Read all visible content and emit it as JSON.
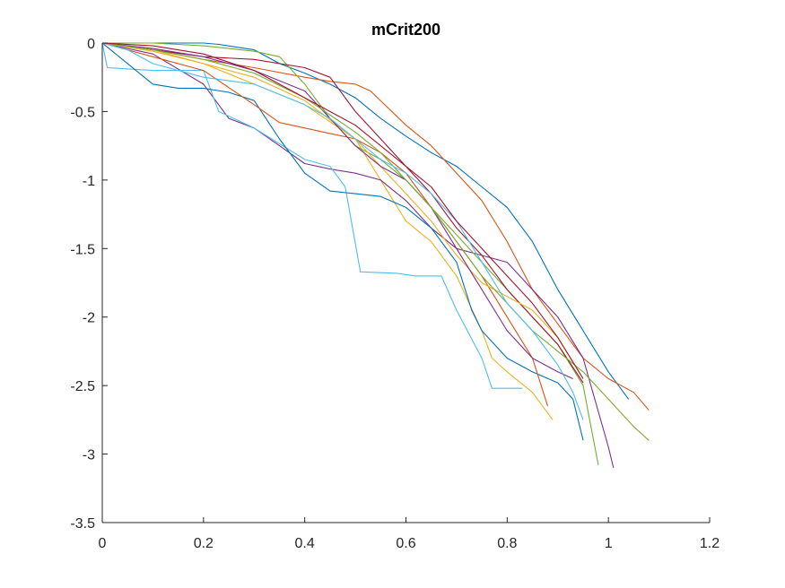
{
  "chart_data": {
    "type": "line",
    "title": "mCrit200",
    "xlabel": "",
    "ylabel": "",
    "xlim": [
      0,
      1.2
    ],
    "ylim": [
      -3.5,
      0
    ],
    "xticks": [
      0,
      0.2,
      0.4,
      0.6,
      0.8,
      1,
      1.2
    ],
    "xtick_labels": [
      "0",
      "0.2",
      "0.4",
      "0.6",
      "0.8",
      "1",
      "1.2"
    ],
    "yticks": [
      0,
      -0.5,
      -1,
      -1.5,
      -2,
      -2.5,
      -3,
      -3.5
    ],
    "ytick_labels": [
      "0",
      "-0.5",
      "-1",
      "-1.5",
      "-2",
      "-2.5",
      "-3",
      "-3.5"
    ],
    "grid": false,
    "legend": "none",
    "series": [
      {
        "color": "#0072BD",
        "x": [
          0,
          0.1,
          0.2,
          0.23,
          0.3,
          0.35,
          0.4,
          0.45,
          0.5,
          0.55,
          0.6,
          0.65,
          0.7,
          0.75,
          0.8,
          0.85,
          0.9,
          0.95,
          1.0,
          1.04
        ],
        "y": [
          0,
          0,
          0,
          -0.01,
          -0.05,
          -0.15,
          -0.22,
          -0.3,
          -0.4,
          -0.55,
          -0.68,
          -0.8,
          -0.9,
          -1.05,
          -1.2,
          -1.45,
          -1.8,
          -2.1,
          -2.4,
          -2.6
        ]
      },
      {
        "color": "#D95319",
        "x": [
          0,
          0.1,
          0.2,
          0.3,
          0.4,
          0.45,
          0.5,
          0.53,
          0.6,
          0.65,
          0.7,
          0.75,
          0.8,
          0.85,
          0.9,
          0.95,
          1.0,
          1.05,
          1.08
        ],
        "y": [
          0,
          -0.05,
          -0.12,
          -0.18,
          -0.25,
          -0.28,
          -0.3,
          -0.35,
          -0.6,
          -0.75,
          -0.95,
          -1.15,
          -1.45,
          -1.8,
          -2.05,
          -2.3,
          -2.45,
          -2.55,
          -2.68
        ]
      },
      {
        "color": "#EDB120",
        "x": [
          0,
          0.1,
          0.2,
          0.3,
          0.4,
          0.5,
          0.55,
          0.6,
          0.65,
          0.7,
          0.75,
          0.77,
          0.8,
          0.85,
          0.89
        ],
        "y": [
          0,
          -0.05,
          -0.15,
          -0.25,
          -0.42,
          -0.7,
          -1.0,
          -1.3,
          -1.45,
          -1.7,
          -2.1,
          -2.3,
          -2.4,
          -2.55,
          -2.75
        ]
      },
      {
        "color": "#7E2F8E",
        "x": [
          0,
          0.1,
          0.2,
          0.25,
          0.3,
          0.35,
          0.4,
          0.45,
          0.5,
          0.55,
          0.6,
          0.65,
          0.7,
          0.75,
          0.8,
          0.85,
          0.9,
          0.95,
          1.0,
          1.01
        ],
        "y": [
          0,
          -0.08,
          -0.3,
          -0.55,
          -0.62,
          -0.75,
          -0.88,
          -0.92,
          -0.95,
          -1.0,
          -1.15,
          -1.35,
          -1.5,
          -1.55,
          -1.6,
          -1.8,
          -2.0,
          -2.3,
          -2.95,
          -3.1
        ]
      },
      {
        "color": "#77AC30",
        "x": [
          0,
          0.1,
          0.2,
          0.25,
          0.3,
          0.35,
          0.4,
          0.45,
          0.5,
          0.55,
          0.6,
          0.65,
          0.7,
          0.75,
          0.8,
          0.85,
          0.9,
          0.95,
          0.98
        ],
        "y": [
          0,
          0,
          -0.02,
          -0.04,
          -0.06,
          -0.1,
          -0.3,
          -0.55,
          -0.75,
          -0.85,
          -1.0,
          -1.2,
          -1.4,
          -1.6,
          -1.8,
          -2.0,
          -2.2,
          -2.5,
          -3.08
        ]
      },
      {
        "color": "#4DBEEE",
        "x": [
          0,
          0.01,
          0.1,
          0.2,
          0.23,
          0.3,
          0.4,
          0.45,
          0.48,
          0.51,
          0.58,
          0.62,
          0.67,
          0.7,
          0.75,
          0.77,
          0.8,
          0.83
        ],
        "y": [
          0,
          -0.18,
          -0.2,
          -0.2,
          -0.5,
          -0.62,
          -0.85,
          -0.9,
          -1.05,
          -1.67,
          -1.68,
          -1.7,
          -1.7,
          -1.95,
          -2.3,
          -2.52,
          -2.52,
          -2.52
        ]
      },
      {
        "color": "#A2142F",
        "x": [
          0,
          0.1,
          0.2,
          0.3,
          0.4,
          0.45,
          0.5,
          0.55,
          0.6,
          0.65,
          0.7,
          0.75,
          0.8,
          0.85,
          0.9,
          0.95
        ],
        "y": [
          0,
          -0.05,
          -0.1,
          -0.12,
          -0.18,
          -0.25,
          -0.5,
          -0.7,
          -0.9,
          -1.1,
          -1.35,
          -1.55,
          -1.8,
          -2.0,
          -2.2,
          -2.48
        ]
      },
      {
        "color": "#0072BD",
        "x": [
          0,
          0.1,
          0.15,
          0.2,
          0.25,
          0.3,
          0.35,
          0.4,
          0.45,
          0.5,
          0.55,
          0.6,
          0.65,
          0.7,
          0.73,
          0.75,
          0.8,
          0.85,
          0.9,
          0.93,
          0.95
        ],
        "y": [
          0,
          -0.3,
          -0.33,
          -0.33,
          -0.36,
          -0.42,
          -0.7,
          -0.95,
          -1.08,
          -1.1,
          -1.12,
          -1.2,
          -1.35,
          -1.6,
          -1.95,
          -2.1,
          -2.3,
          -2.4,
          -2.48,
          -2.6,
          -2.9
        ]
      },
      {
        "color": "#D95319",
        "x": [
          0,
          0.1,
          0.2,
          0.3,
          0.35,
          0.4,
          0.45,
          0.5,
          0.55,
          0.6,
          0.65,
          0.7,
          0.75,
          0.8,
          0.85,
          0.88
        ],
        "y": [
          0,
          -0.1,
          -0.2,
          -0.45,
          -0.58,
          -0.62,
          -0.66,
          -0.7,
          -0.8,
          -0.95,
          -1.2,
          -1.45,
          -1.7,
          -2.0,
          -2.3,
          -2.65
        ]
      },
      {
        "color": "#EDB120",
        "x": [
          0,
          0.1,
          0.2,
          0.3,
          0.4,
          0.5,
          0.55,
          0.6,
          0.65,
          0.7,
          0.75,
          0.8,
          0.85,
          0.9,
          0.95
        ],
        "y": [
          0,
          -0.06,
          -0.15,
          -0.3,
          -0.45,
          -0.7,
          -0.9,
          -1.1,
          -1.3,
          -1.55,
          -1.75,
          -1.85,
          -1.95,
          -2.15,
          -2.45
        ]
      },
      {
        "color": "#7E2F8E",
        "x": [
          0,
          0.1,
          0.2,
          0.3,
          0.4,
          0.45,
          0.5,
          0.55,
          0.6,
          0.65,
          0.7,
          0.75,
          0.8,
          0.85,
          0.9,
          0.93
        ],
        "y": [
          0,
          -0.04,
          -0.1,
          -0.2,
          -0.35,
          -0.55,
          -0.75,
          -0.9,
          -1.0,
          -1.2,
          -1.5,
          -1.8,
          -2.1,
          -2.3,
          -2.4,
          -2.45
        ]
      },
      {
        "color": "#77AC30",
        "x": [
          0,
          0.1,
          0.2,
          0.3,
          0.4,
          0.5,
          0.55,
          0.6,
          0.65,
          0.7,
          0.75,
          0.8,
          0.85,
          0.9,
          0.95,
          1.0,
          1.05,
          1.08
        ],
        "y": [
          0,
          -0.05,
          -0.12,
          -0.22,
          -0.4,
          -0.65,
          -0.8,
          -1.0,
          -1.2,
          -1.45,
          -1.7,
          -1.9,
          -2.1,
          -2.25,
          -2.4,
          -2.6,
          -2.8,
          -2.9
        ]
      },
      {
        "color": "#4DBEEE",
        "x": [
          0,
          0.05,
          0.1,
          0.2,
          0.3,
          0.4,
          0.45,
          0.5,
          0.55,
          0.6,
          0.65,
          0.7,
          0.75,
          0.8,
          0.85,
          0.9,
          0.93,
          0.95
        ],
        "y": [
          0,
          -0.05,
          -0.15,
          -0.25,
          -0.3,
          -0.45,
          -0.55,
          -0.7,
          -0.85,
          -0.95,
          -1.1,
          -1.3,
          -1.6,
          -1.9,
          -2.1,
          -2.35,
          -2.55,
          -2.75
        ]
      },
      {
        "color": "#A2142F",
        "x": [
          0,
          0.1,
          0.2,
          0.3,
          0.4,
          0.5,
          0.55,
          0.6,
          0.65,
          0.7,
          0.75,
          0.8,
          0.85,
          0.9,
          0.95
        ],
        "y": [
          0,
          -0.02,
          -0.08,
          -0.2,
          -0.4,
          -0.6,
          -0.75,
          -0.9,
          -1.05,
          -1.3,
          -1.5,
          -1.7,
          -1.9,
          -2.15,
          -2.45
        ]
      }
    ]
  }
}
